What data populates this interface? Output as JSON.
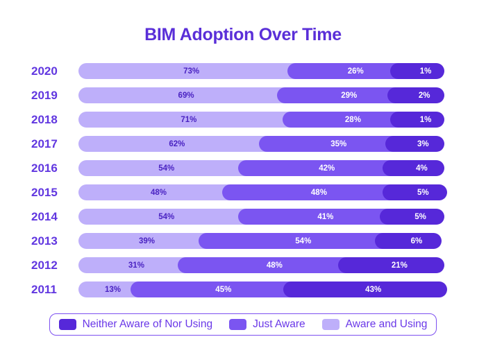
{
  "title": "BIM Adoption Over Time",
  "chart_data": {
    "type": "bar",
    "variant": "horizontal-stacked",
    "title": "BIM Adoption Over Time",
    "value_suffix": "%",
    "categories": [
      "2020",
      "2019",
      "2018",
      "2017",
      "2016",
      "2015",
      "2014",
      "2013",
      "2012",
      "2011"
    ],
    "series": [
      {
        "name": "Aware and Using",
        "color": "#beaffa",
        "text_color": "#4a23c2",
        "values": [
          73,
          69,
          71,
          62,
          54,
          48,
          54,
          39,
          31,
          13
        ]
      },
      {
        "name": "Just Aware",
        "color": "#7b55f1",
        "text_color": "#ffffff",
        "values": [
          26,
          29,
          28,
          35,
          42,
          48,
          41,
          54,
          48,
          45
        ]
      },
      {
        "name": "Neither Aware of Nor Using",
        "color": "#5628d9",
        "text_color": "#ffffff",
        "values": [
          1,
          2,
          1,
          3,
          4,
          5,
          5,
          6,
          21,
          43
        ]
      }
    ],
    "legend_position": "bottom",
    "xlim": [
      0,
      100
    ],
    "grid": false
  },
  "legend": {
    "items": [
      {
        "label": "Neither Aware of Nor Using",
        "color": "#5628d9"
      },
      {
        "label": "Just Aware",
        "color": "#7b55f1"
      },
      {
        "label": "Aware and Using",
        "color": "#beaffa"
      }
    ]
  },
  "colors": {
    "title_text": "#5a2fd8",
    "year_text": "#6137e0",
    "legend_text": "#6a38e8",
    "legend_border": "#7c4ff0",
    "background": "#ffffff"
  }
}
